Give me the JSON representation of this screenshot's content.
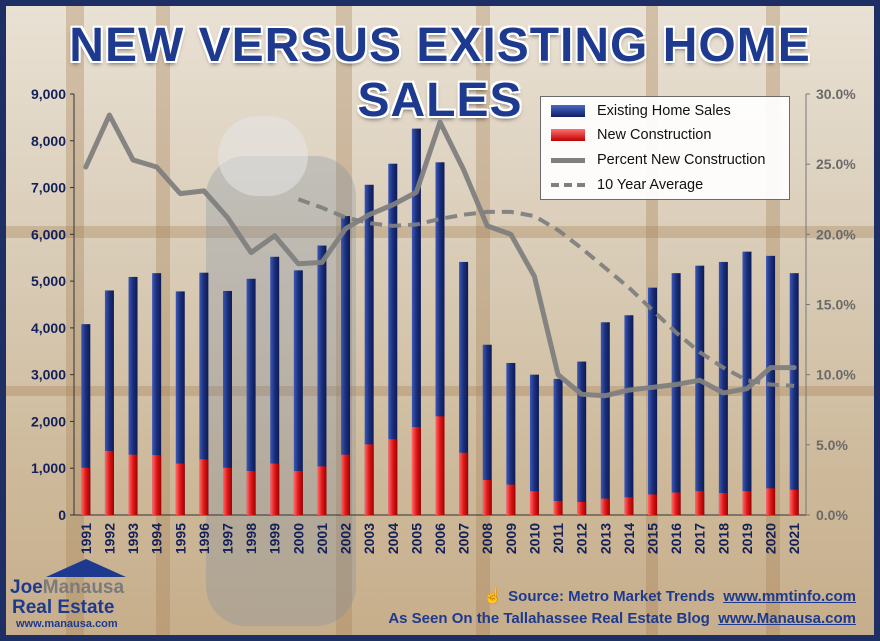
{
  "title": "NEW VERSUS EXISTING HOME SALES",
  "legend": {
    "existing": "Existing Home Sales",
    "new": "New Construction",
    "percent": "Percent New Construction",
    "avg": "10 Year Average"
  },
  "footer": {
    "source_prefix": "Source: Metro Market Trends",
    "source_url": "www.mmtinfo.com",
    "seen_prefix": "As Seen On the Tallahassee Real Estate Blog",
    "seen_url": "www.Manausa.com"
  },
  "logo": {
    "name_a": "Joe",
    "name_b": "Manausa",
    "sub": "Real Estate",
    "site": "www.manausa.com"
  },
  "colors": {
    "existing": "#1b2f7a",
    "new": "#e01818",
    "percent": "#7f7f7f",
    "avg": "#7f7f7f"
  },
  "chart_data": {
    "type": "bar",
    "categories": [
      "1991",
      "1992",
      "1993",
      "1994",
      "1995",
      "1996",
      "1997",
      "1998",
      "1999",
      "2000",
      "2001",
      "2002",
      "2003",
      "2004",
      "2005",
      "2006",
      "2007",
      "2008",
      "2009",
      "2010",
      "2011",
      "2012",
      "2013",
      "2014",
      "2015",
      "2016",
      "2017",
      "2018",
      "2019",
      "2020",
      "2021"
    ],
    "series": [
      {
        "name": "Existing Home Sales",
        "axis": "left",
        "type": "bar",
        "values": [
          4080,
          4800,
          5090,
          5170,
          4780,
          5180,
          4790,
          5050,
          5520,
          5230,
          5760,
          6390,
          7060,
          7510,
          8260,
          7540,
          5410,
          3640,
          3250,
          3000,
          2910,
          3280,
          4120,
          4270,
          4860,
          5170,
          5330,
          5410,
          5630,
          5540,
          5170
        ]
      },
      {
        "name": "New Construction",
        "axis": "left",
        "type": "bar",
        "values": [
          1010,
          1370,
          1290,
          1280,
          1100,
          1190,
          1010,
          940,
          1100,
          940,
          1040,
          1290,
          1510,
          1620,
          1880,
          2110,
          1330,
          750,
          650,
          510,
          300,
          280,
          350,
          380,
          440,
          480,
          510,
          470,
          510,
          570,
          540
        ]
      },
      {
        "name": "Percent New Construction",
        "axis": "right",
        "type": "line",
        "values": [
          24.8,
          28.5,
          25.3,
          24.8,
          22.9,
          23.1,
          21.2,
          18.7,
          19.9,
          17.9,
          18.0,
          20.4,
          21.4,
          22.1,
          23.0,
          28.0,
          24.6,
          20.6,
          20.0,
          17.0,
          10.0,
          8.6,
          8.5,
          8.9,
          9.1,
          9.3,
          9.6,
          8.7,
          9.0,
          10.5,
          10.5
        ]
      },
      {
        "name": "10 Year Average",
        "axis": "right",
        "type": "dashed-line",
        "x": [
          "2000",
          "2001",
          "2002",
          "2003",
          "2004",
          "2005",
          "2006",
          "2007",
          "2008",
          "2009",
          "2010",
          "2011",
          "2012",
          "2013",
          "2014",
          "2015",
          "2016",
          "2017",
          "2018",
          "2019",
          "2020",
          "2021"
        ],
        "values": [
          22.5,
          21.9,
          21.2,
          20.8,
          20.6,
          20.7,
          21.1,
          21.4,
          21.6,
          21.6,
          21.3,
          20.3,
          19.0,
          17.6,
          16.2,
          14.6,
          13.0,
          11.6,
          10.5,
          9.6,
          9.3,
          9.2
        ]
      }
    ],
    "ylim_left": [
      0,
      9000
    ],
    "yticks_left": [
      "0",
      "1,000",
      "2,000",
      "3,000",
      "4,000",
      "5,000",
      "6,000",
      "7,000",
      "8,000",
      "9,000"
    ],
    "ylim_right": [
      0,
      30
    ],
    "yticks_right": [
      "0.0%",
      "5.0%",
      "10.0%",
      "15.0%",
      "20.0%",
      "25.0%",
      "30.0%"
    ],
    "grid": false,
    "legend_position": "top-right"
  }
}
